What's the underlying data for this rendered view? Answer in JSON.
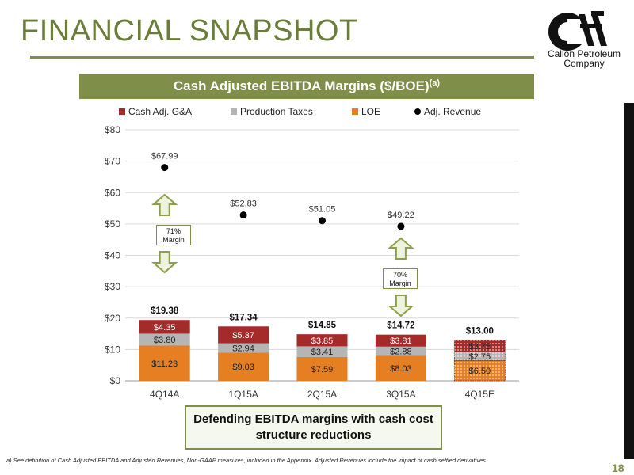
{
  "slide": {
    "title": "FINANCIAL SNAPSHOT",
    "logo_line1": "Callon Petroleum",
    "logo_line2": "Company",
    "banner_title": "Cash Adjusted EBITDA Margins ($/BOE)",
    "banner_sup": "(a)",
    "callout_line1": "Defending EBITDA margins with cash cost",
    "callout_line2": "structure reductions",
    "footnote": "a)     See definition of Cash Adjusted EBITDA and Adjusted Revenues, Non-GAAP measures, included in the Appendix. Adjusted Revenues include the impact of cash settled derivatives.",
    "page_number": "18",
    "margin1_line1": "71%",
    "margin1_line2": "Margin",
    "margin2_line1": "70%",
    "margin2_line2": "Margin"
  },
  "colors": {
    "accent": "#7f8f4a",
    "ga": "#a52a2a",
    "taxes": "#b5b5b5",
    "loe": "#e67e22",
    "revenue": "#000000"
  },
  "chart_data": {
    "type": "bar",
    "stacked": true,
    "categories": [
      "4Q14A",
      "1Q15A",
      "2Q15A",
      "3Q15A",
      "4Q15E"
    ],
    "series": [
      {
        "name": "LOE",
        "values": [
          11.23,
          9.03,
          7.59,
          8.03,
          6.5
        ],
        "labels": [
          "$11.23",
          "$9.03",
          "$7.59",
          "$8.03",
          "$6.50"
        ]
      },
      {
        "name": "Production Taxes",
        "values": [
          3.8,
          2.94,
          3.41,
          2.88,
          2.75
        ],
        "labels": [
          "$3.80",
          "$2.94",
          "$3.41",
          "$2.88",
          "$2.75"
        ]
      },
      {
        "name": "Cash Adj. G&A",
        "values": [
          4.35,
          5.37,
          3.85,
          3.81,
          3.75
        ],
        "labels": [
          "$4.35",
          "$5.37",
          "$3.85",
          "$3.81",
          "$3.75"
        ]
      }
    ],
    "totals": [
      "$19.38",
      "$17.34",
      "$14.85",
      "$14.72",
      "$13.00"
    ],
    "scatter": {
      "name": "Adj. Revenue",
      "values": [
        67.99,
        52.83,
        51.05,
        49.22
      ],
      "labels": [
        "$67.99",
        "$52.83",
        "$51.05",
        "$49.22"
      ]
    },
    "legend": [
      "Cash Adj. G&A",
      "Production Taxes",
      "LOE",
      "Adj. Revenue"
    ],
    "legend_position": "top",
    "ylim": [
      0,
      80
    ],
    "yticks": [
      "$0",
      "$10",
      "$20",
      "$30",
      "$40",
      "$50",
      "$60",
      "$70",
      "$80"
    ],
    "grid": true,
    "estimated_category": "4Q15E"
  }
}
